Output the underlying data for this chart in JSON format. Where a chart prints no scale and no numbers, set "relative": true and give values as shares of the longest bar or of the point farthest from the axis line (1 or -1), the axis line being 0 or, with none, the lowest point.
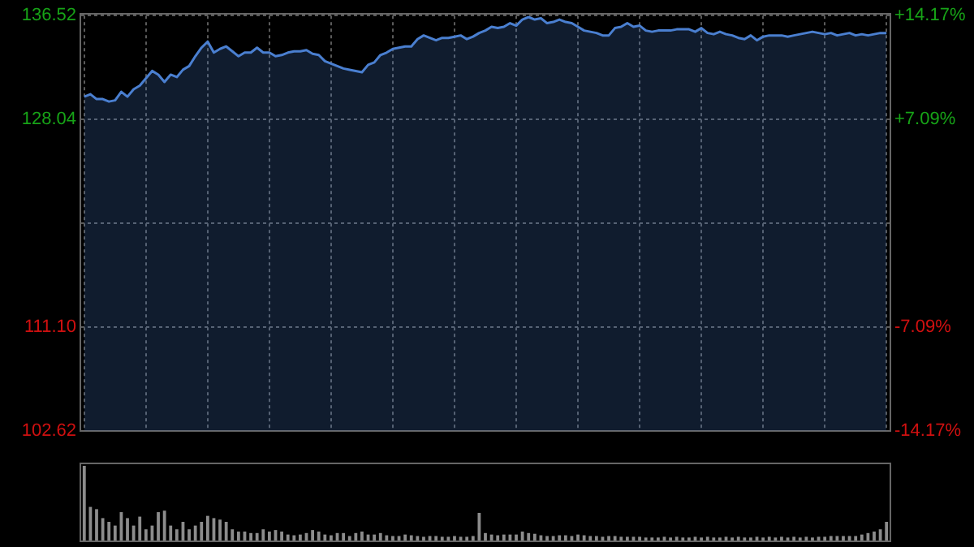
{
  "chart_data": [
    {
      "type": "area",
      "categories": [
        null,
        null,
        null,
        null,
        null,
        null,
        null,
        null,
        null,
        null,
        null,
        null,
        null,
        null,
        null,
        null,
        null,
        null,
        null,
        null,
        null,
        null,
        null,
        null,
        null,
        null,
        null,
        null,
        null,
        null,
        null,
        null,
        null,
        null,
        null,
        null,
        null,
        null,
        null,
        null,
        null,
        null,
        null,
        null,
        null,
        null,
        null,
        null,
        null,
        null,
        null,
        null,
        null,
        null,
        null,
        null,
        null,
        null,
        null,
        null,
        null,
        null,
        null,
        null,
        null,
        null,
        null,
        null,
        null,
        null,
        null,
        null,
        null,
        null,
        null,
        null,
        null,
        null,
        null,
        null,
        null,
        null,
        null,
        null,
        null,
        null,
        null,
        null,
        null,
        null,
        null,
        null,
        null,
        null,
        null,
        null,
        null,
        null,
        null,
        null,
        null,
        null,
        null,
        null,
        null,
        null,
        null,
        null,
        null,
        null,
        null,
        null,
        null,
        null,
        null,
        null,
        null,
        null,
        null,
        null,
        null,
        null,
        null,
        null,
        null,
        null,
        null,
        null,
        null,
        null,
        null
      ],
      "series": [
        {
          "color": "#4a7fd0",
          "values": [
            129.9,
            130.1,
            129.7,
            129.7,
            129.5,
            129.6,
            130.3,
            129.9,
            130.5,
            130.8,
            131.4,
            132.0,
            131.7,
            131.1,
            131.7,
            131.5,
            132.1,
            132.4,
            133.2,
            133.9,
            134.4,
            133.5,
            133.8,
            134.0,
            133.6,
            133.2,
            133.5,
            133.5,
            133.9,
            133.5,
            133.5,
            133.2,
            133.3,
            133.5,
            133.6,
            133.6,
            133.7,
            133.4,
            133.3,
            132.8,
            132.6,
            132.4,
            132.2,
            132.1,
            132.0,
            131.9,
            132.5,
            132.7,
            133.3,
            133.5,
            133.8,
            133.9,
            134.0,
            134.0,
            134.6,
            134.9,
            134.7,
            134.5,
            134.7,
            134.7,
            134.8,
            134.9,
            134.6,
            134.8,
            135.1,
            135.3,
            135.6,
            135.5,
            135.6,
            135.9,
            135.7,
            136.2,
            136.4,
            136.2,
            136.3,
            135.9,
            136.0,
            136.2,
            136.0,
            135.9,
            135.6,
            135.3,
            135.2,
            135.1,
            134.9,
            134.9,
            135.5,
            135.6,
            135.9,
            135.6,
            135.7,
            135.3,
            135.2,
            135.3,
            135.3,
            135.3,
            135.4,
            135.4,
            135.4,
            135.2,
            135.5,
            135.1,
            135.0,
            135.2,
            135.0,
            134.9,
            134.7,
            134.6,
            134.9,
            134.5,
            134.8,
            134.9,
            134.9,
            134.9,
            134.8,
            134.9,
            135.0,
            135.1,
            135.2,
            135.1,
            135.0,
            135.1,
            134.9,
            135.0,
            135.1,
            134.9,
            135.0,
            134.9,
            135.0,
            135.1,
            135.1
          ]
        }
      ],
      "ylim": [
        102.62,
        136.52
      ],
      "yticks": [
        {
          "value": 136.52,
          "label": "136.52"
        },
        {
          "value": 128.04,
          "label": "128.04"
        },
        {
          "value": 119.57,
          "label": null
        },
        {
          "value": 111.1,
          "label": "111.10"
        },
        {
          "value": 102.62,
          "label": "102.62"
        }
      ],
      "y2lim": [
        -14.17,
        14.17
      ],
      "y2ticks": [
        {
          "value": 14.17,
          "label": "+14.17%"
        },
        {
          "value": 7.09,
          "label": "+7.09%"
        },
        {
          "value": 0,
          "label": null
        },
        {
          "value": -7.09,
          "label": "-7.09%"
        },
        {
          "value": -14.17,
          "label": "-14.17%"
        }
      ],
      "grid": true,
      "marker": "none",
      "tick_labels": "y"
    },
    {
      "type": "bar",
      "relative": true,
      "color": "#8c8c8c",
      "tick_labels": false,
      "categories": [
        null,
        null,
        null,
        null,
        null,
        null,
        null,
        null,
        null,
        null,
        null,
        null,
        null,
        null,
        null,
        null,
        null,
        null,
        null,
        null,
        null,
        null,
        null,
        null,
        null,
        null,
        null,
        null,
        null,
        null,
        null,
        null,
        null,
        null,
        null,
        null,
        null,
        null,
        null,
        null,
        null,
        null,
        null,
        null,
        null,
        null,
        null,
        null,
        null,
        null,
        null,
        null,
        null,
        null,
        null,
        null,
        null,
        null,
        null,
        null,
        null,
        null,
        null,
        null,
        null,
        null,
        null,
        null,
        null,
        null,
        null,
        null,
        null,
        null,
        null,
        null,
        null,
        null,
        null,
        null,
        null,
        null,
        null,
        null,
        null,
        null,
        null,
        null,
        null,
        null,
        null,
        null,
        null,
        null,
        null,
        null,
        null,
        null,
        null,
        null,
        null,
        null,
        null,
        null,
        null,
        null,
        null,
        null,
        null,
        null,
        null,
        null,
        null,
        null,
        null,
        null,
        null,
        null,
        null,
        null,
        null,
        null,
        null,
        null,
        null,
        null,
        null,
        null,
        null,
        null,
        null
      ],
      "values": [
        1.0,
        0.45,
        0.42,
        0.3,
        0.25,
        0.2,
        0.38,
        0.3,
        0.2,
        0.32,
        0.15,
        0.2,
        0.38,
        0.4,
        0.2,
        0.15,
        0.25,
        0.15,
        0.2,
        0.25,
        0.33,
        0.3,
        0.28,
        0.25,
        0.15,
        0.12,
        0.12,
        0.1,
        0.1,
        0.15,
        0.12,
        0.14,
        0.12,
        0.08,
        0.07,
        0.08,
        0.1,
        0.14,
        0.12,
        0.08,
        0.07,
        0.1,
        0.1,
        0.06,
        0.1,
        0.12,
        0.08,
        0.08,
        0.1,
        0.07,
        0.06,
        0.06,
        0.08,
        0.07,
        0.06,
        0.05,
        0.06,
        0.06,
        0.05,
        0.05,
        0.06,
        0.05,
        0.05,
        0.06,
        0.37,
        0.1,
        0.08,
        0.07,
        0.08,
        0.08,
        0.08,
        0.12,
        0.1,
        0.09,
        0.07,
        0.06,
        0.06,
        0.07,
        0.07,
        0.06,
        0.08,
        0.07,
        0.06,
        0.06,
        0.05,
        0.06,
        0.06,
        0.05,
        0.05,
        0.05,
        0.05,
        0.04,
        0.04,
        0.04,
        0.05,
        0.04,
        0.05,
        0.04,
        0.04,
        0.05,
        0.04,
        0.05,
        0.04,
        0.04,
        0.05,
        0.04,
        0.05,
        0.04,
        0.04,
        0.05,
        0.04,
        0.05,
        0.04,
        0.05,
        0.04,
        0.05,
        0.04,
        0.05,
        0.04,
        0.05,
        0.05,
        0.06,
        0.06,
        0.06,
        0.06,
        0.06,
        0.08,
        0.1,
        0.12,
        0.15,
        0.25
      ]
    }
  ]
}
